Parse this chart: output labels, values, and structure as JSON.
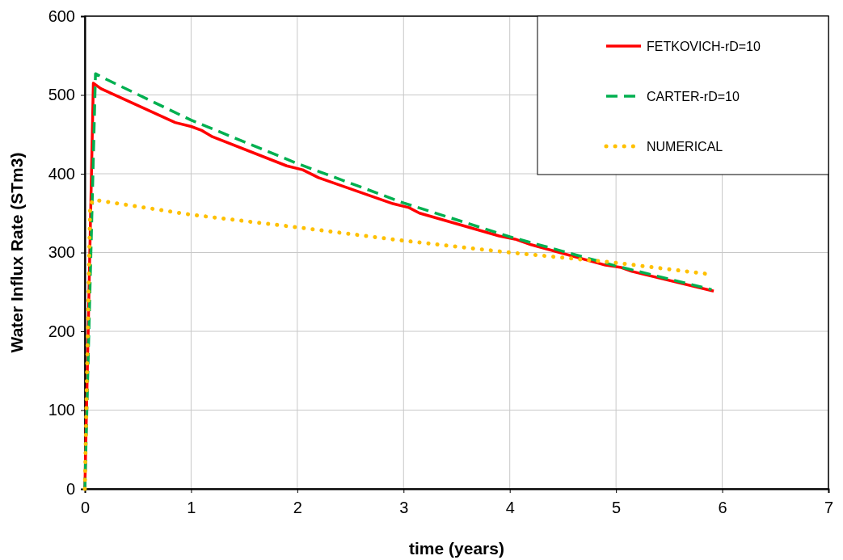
{
  "chart_data": {
    "type": "line",
    "xlabel": "time (years)",
    "ylabel": "Water Influx Rate (STm3)",
    "xlim": [
      0,
      7
    ],
    "ylim": [
      0,
      600
    ],
    "xticks": [
      0,
      1,
      2,
      3,
      4,
      5,
      6,
      7
    ],
    "yticks": [
      0,
      100,
      200,
      300,
      400,
      500,
      600
    ],
    "grid": true,
    "legend": "top right",
    "marker": "none",
    "series": [
      {
        "name": "FETKOVICH-rD=10",
        "color": "#ff0000",
        "line_style": "solid",
        "x": [
          0,
          0.08,
          0.15,
          0.85,
          1.0,
          1.1,
          1.2,
          1.9,
          2.05,
          2.2,
          2.9,
          3.05,
          3.15,
          3.9,
          4.05,
          4.2,
          4.9,
          5.05,
          5.15,
          5.92
        ],
        "values": [
          0,
          515,
          508,
          465,
          460,
          455,
          447,
          410,
          405,
          395,
          362,
          357,
          350,
          321,
          317,
          310,
          284,
          281,
          276,
          251
        ]
      },
      {
        "name": "CARTER-rD=10",
        "color": "#00b050",
        "line_style": "dashed",
        "x": [
          0,
          0.1,
          0.2,
          1,
          2,
          3,
          4,
          5,
          5.9
        ],
        "values": [
          0,
          527,
          520,
          468,
          413,
          363,
          320,
          283,
          253
        ]
      },
      {
        "name": "NUMERICAL",
        "color": "#ffc000",
        "line_style": "dotted",
        "x": [
          0,
          0.05,
          0.08,
          1,
          2,
          3,
          4,
          5,
          5.85
        ],
        "values": [
          0,
          360,
          367,
          348,
          332,
          315,
          300,
          287,
          273
        ]
      }
    ]
  }
}
